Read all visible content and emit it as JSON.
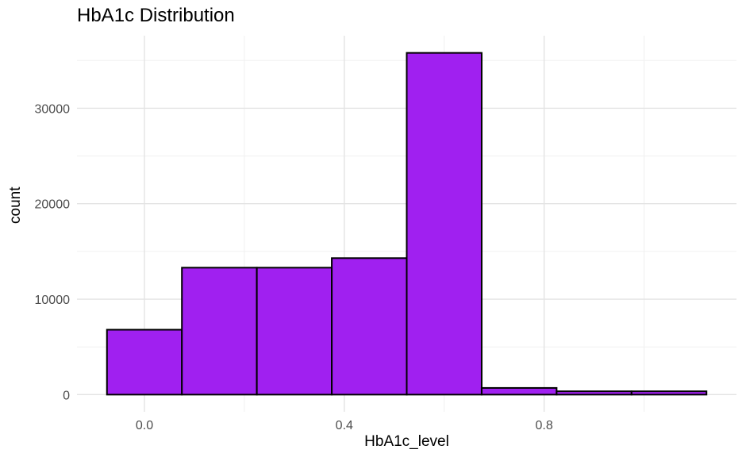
{
  "chart_data": {
    "type": "bar",
    "title": "HbA1c Distribution",
    "xlabel": "HbA1c_level",
    "ylabel": "count",
    "bins": [
      {
        "x0": -0.075,
        "x1": 0.075,
        "count": 6800
      },
      {
        "x0": 0.075,
        "x1": 0.225,
        "count": 13300
      },
      {
        "x0": 0.225,
        "x1": 0.375,
        "count": 13300
      },
      {
        "x0": 0.375,
        "x1": 0.525,
        "count": 14300
      },
      {
        "x0": 0.525,
        "x1": 0.675,
        "count": 35800
      },
      {
        "x0": 0.675,
        "x1": 0.825,
        "count": 700
      },
      {
        "x0": 0.825,
        "x1": 0.975,
        "count": 350
      },
      {
        "x0": 0.975,
        "x1": 1.125,
        "count": 350
      }
    ],
    "xlim": [
      -0.135,
      1.185
    ],
    "ylim": [
      -1800,
      37600
    ],
    "xticks": [
      "0.0",
      "0.4",
      "0.8"
    ],
    "xtick_values": [
      0.0,
      0.4,
      0.8
    ],
    "yticks": [
      "0",
      "10000",
      "20000",
      "30000"
    ],
    "ytick_values": [
      0,
      10000,
      20000,
      30000
    ],
    "bar_fill": "#a020f0",
    "bar_outline": "#000000",
    "grid": true
  }
}
